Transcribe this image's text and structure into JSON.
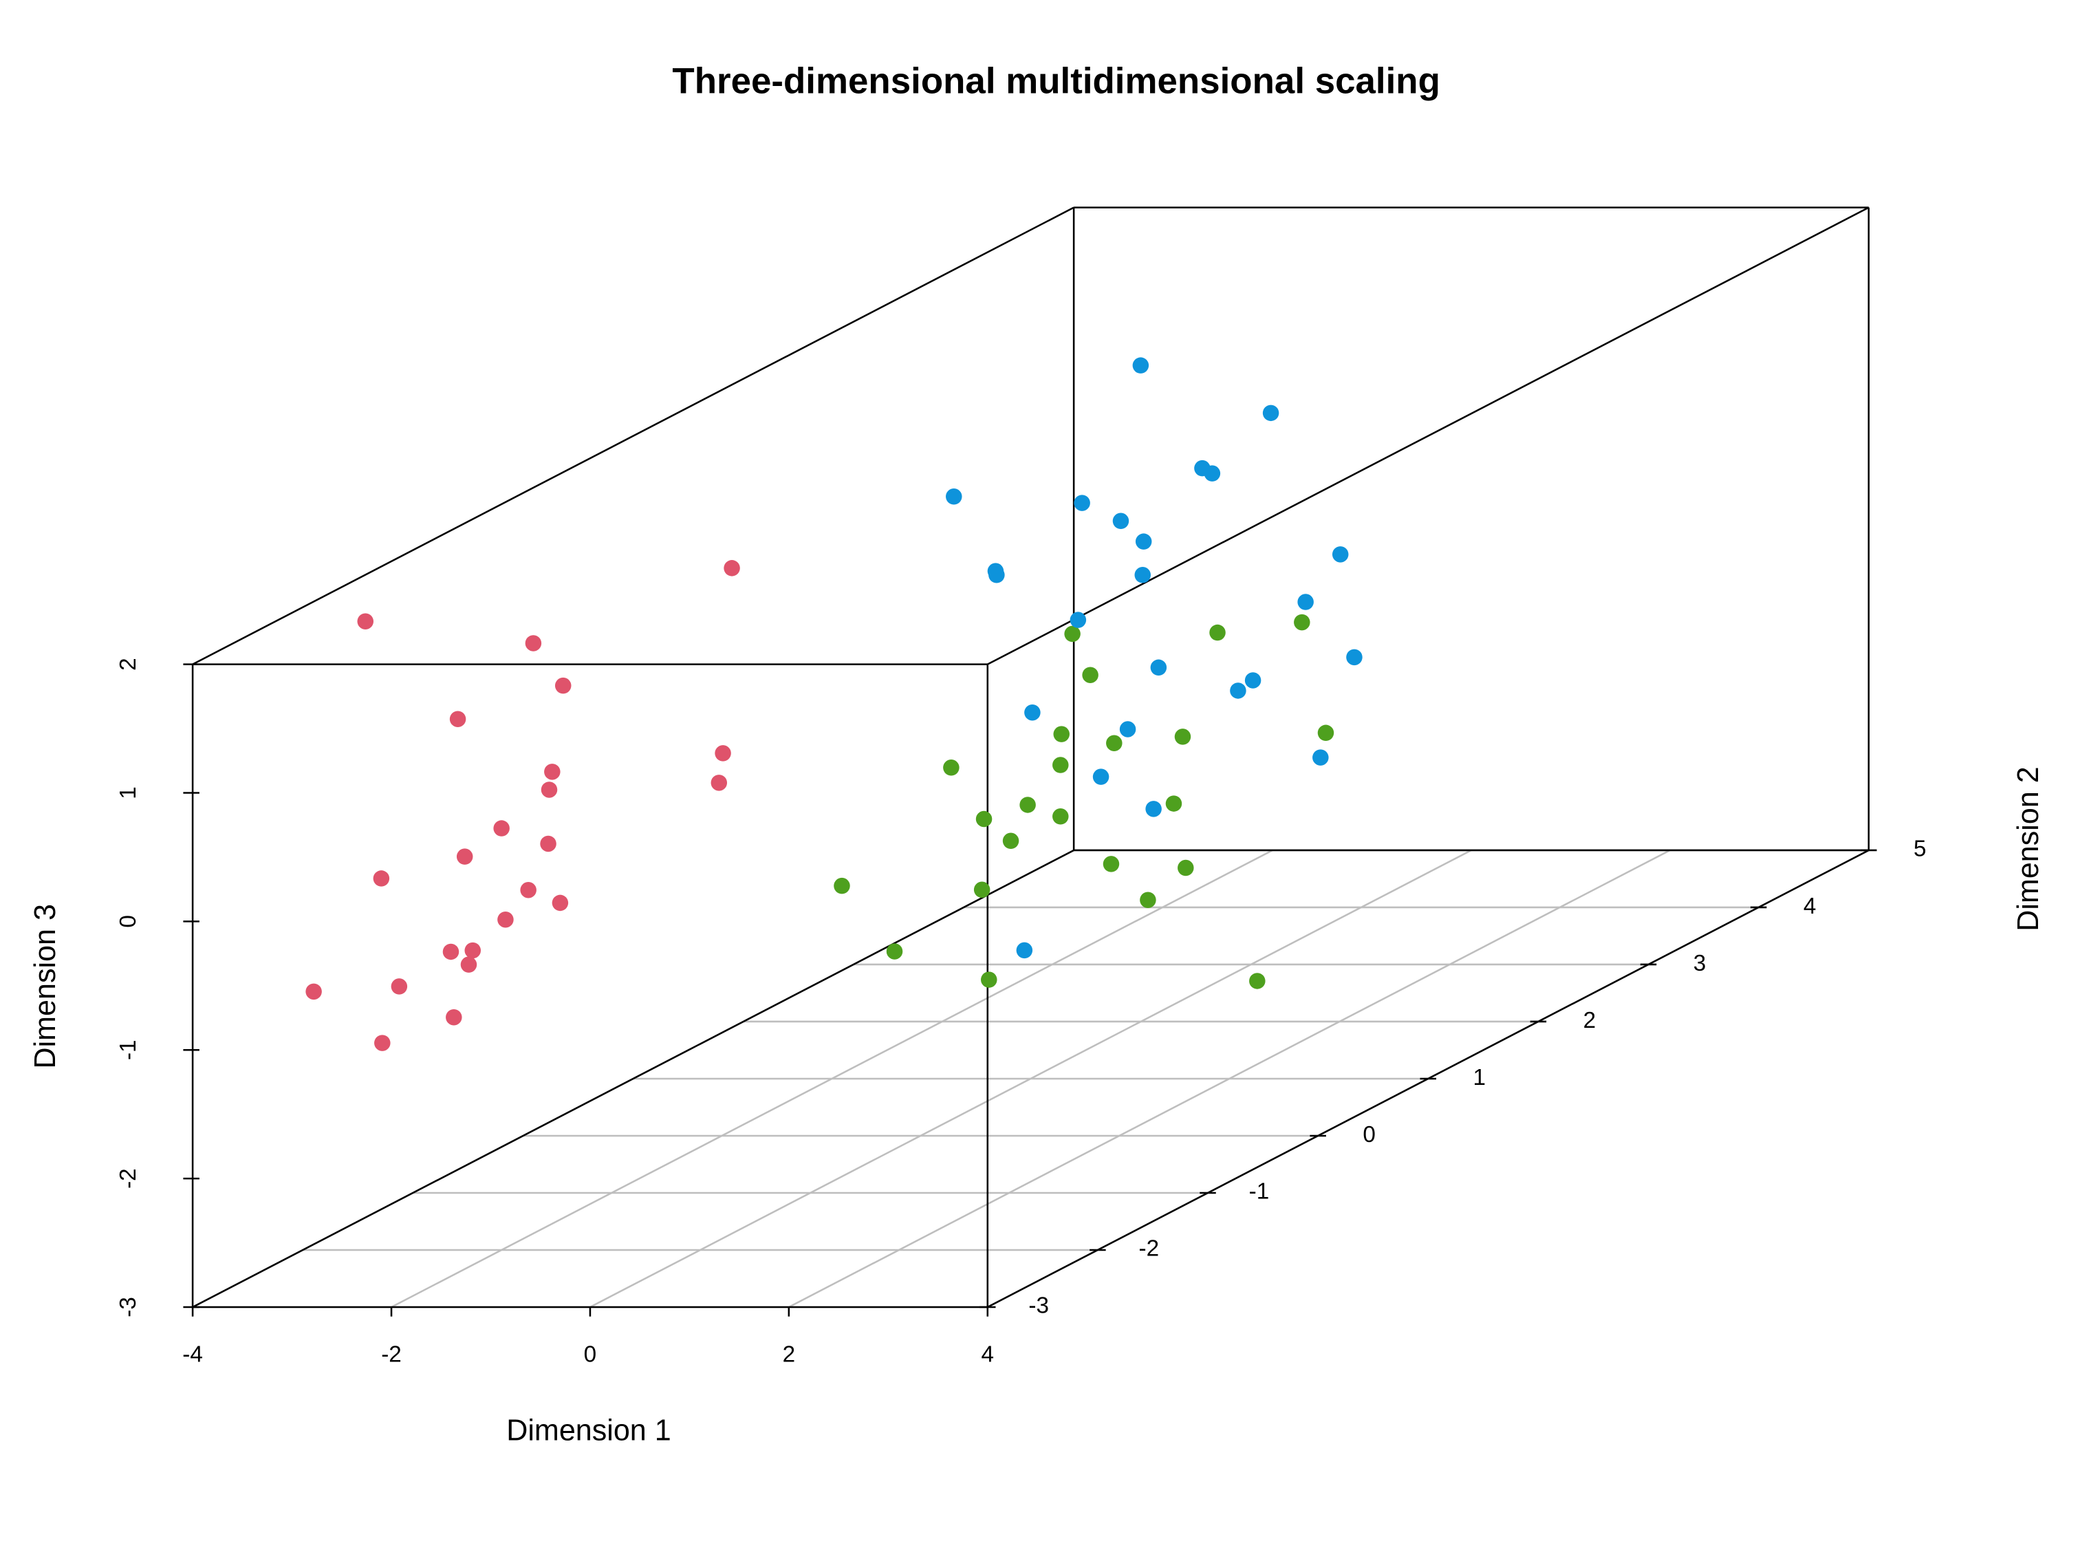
{
  "chart_data": {
    "type": "scatter3d",
    "title": "Three-dimensional multidimensional scaling",
    "xlabel": "Dimension 1",
    "ylabel": "Dimension 2",
    "zlabel": "Dimension 3",
    "xlim": [
      -4,
      4
    ],
    "ylim": [
      -3,
      5
    ],
    "zlim": [
      -3,
      2
    ],
    "xticks": [
      -4,
      -2,
      0,
      2,
      4
    ],
    "yticks": [
      -3,
      -2,
      -1,
      0,
      1,
      2,
      3,
      4,
      5
    ],
    "zticks": [
      -3,
      -2,
      -1,
      0,
      1,
      2
    ],
    "grid": true,
    "series": [
      {
        "color": "#DF536B",
        "x": [
          -3.37,
          -1.68,
          -1.38,
          -2.44,
          -1.49,
          -1.52,
          -2.0,
          -1.53,
          -2.37,
          -3.21,
          -1.73,
          -1.41,
          -1.96,
          -2.51,
          -2.29,
          -2.33,
          -3.89,
          -3.03,
          -2.48,
          -3.2,
          -0.79,
          -0.88,
          -0.92
        ],
        "y": [
          -2,
          -2,
          -2,
          -2,
          -2,
          -2,
          -2,
          -2,
          -2,
          -2,
          -2,
          -2,
          -2,
          -2,
          -2,
          -2,
          -2,
          -2,
          -2,
          -2,
          -1,
          -1,
          -1
        ],
        "z": [
          1.89,
          1.72,
          1.39,
          1.13,
          0.72,
          0.58,
          0.28,
          0.16,
          0.06,
          -0.11,
          -0.2,
          -0.3,
          -0.43,
          -0.68,
          -0.67,
          -0.78,
          -0.99,
          -0.95,
          -1.19,
          -1.39,
          1.86,
          0.42,
          0.19
        ]
      },
      {
        "color": "#4EA01E",
        "x": [
          0.42,
          1.88,
          2.73,
          0.6,
          0.31,
          1.53,
          2.97,
          0.84,
          -0.8,
          0.3,
          -0.03,
          1.44,
          -0.47,
          0.3,
          -0.2,
          0.81,
          1.56,
          -1.9,
          -0.49,
          1.18,
          -1.37,
          -0.42,
          2.28
        ],
        "y": [
          1,
          1,
          1,
          1,
          1,
          1,
          1,
          1,
          1,
          1,
          1,
          1,
          1,
          1,
          1,
          1,
          1,
          1,
          1,
          1,
          1,
          1,
          1
        ],
        "z": [
          0.46,
          0.47,
          0.55,
          0.14,
          -0.32,
          -0.34,
          -0.31,
          -0.39,
          -0.58,
          -0.56,
          -0.87,
          -0.86,
          -0.98,
          -0.96,
          -1.15,
          -1.33,
          -1.36,
          -1.5,
          -1.53,
          -1.61,
          -2.01,
          -2.23,
          -2.24
        ]
      },
      {
        "color": "#0E93DB",
        "x": [
          -1.11,
          0.2,
          -0.49,
          -0.39,
          -2.99,
          -1.7,
          -1.31,
          -1.08,
          -2.57,
          -2.56,
          -1.09,
          0.9,
          0.55,
          -1.74,
          1.04,
          -0.93,
          0.02,
          -0.13,
          -2.2,
          -1.24,
          0.7,
          -1.51,
          -0.98,
          -2.28
        ],
        "y": [
          3,
          3,
          3,
          3,
          3,
          3,
          3,
          3,
          3,
          3,
          3,
          3,
          3,
          3,
          3,
          3,
          3,
          3,
          3,
          3,
          3,
          3,
          3,
          3
        ],
        "z": [
          1.66,
          1.29,
          0.86,
          0.82,
          0.64,
          0.59,
          0.45,
          0.29,
          0.06,
          0.03,
          0.03,
          0.19,
          -0.18,
          -0.32,
          -0.61,
          -0.69,
          -0.79,
          -0.87,
          -1.04,
          -1.17,
          -1.39,
          -1.54,
          -1.79,
          -2.89
        ]
      }
    ]
  }
}
